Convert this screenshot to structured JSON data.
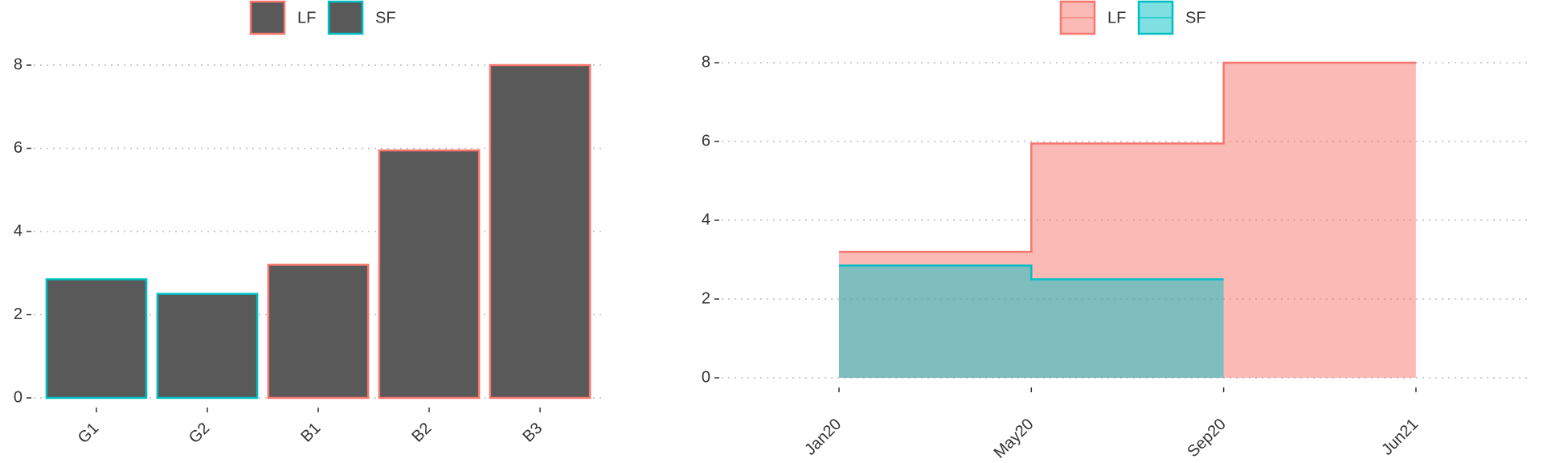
{
  "chart_data": [
    {
      "type": "bar",
      "categories": [
        "G1",
        "G2",
        "B1",
        "B2",
        "B3"
      ],
      "fill": "#595959",
      "series": [
        {
          "name": "LF",
          "color": "#f8766d",
          "values": [
            null,
            null,
            3.2,
            5.95,
            8
          ]
        },
        {
          "name": "SF",
          "color": "#00bfc4",
          "values": [
            2.85,
            2.5,
            null,
            null,
            null
          ]
        }
      ],
      "ylim": [
        0,
        8
      ],
      "yticks": [
        0,
        2,
        4,
        6,
        8
      ],
      "grid": true
    },
    {
      "type": "step-area",
      "x": [
        "Jan20",
        "May20",
        "Sep20",
        "Jun21"
      ],
      "series": [
        {
          "name": "LF",
          "color": "#f8766d",
          "values": [
            3.2,
            5.95,
            8,
            8
          ]
        },
        {
          "name": "SF",
          "color": "#00bfc4",
          "values": [
            2.85,
            2.5,
            2.5,
            null
          ]
        }
      ],
      "ylim": [
        0,
        8
      ],
      "yticks": [
        0,
        2,
        4,
        6,
        8
      ],
      "grid": true
    }
  ]
}
